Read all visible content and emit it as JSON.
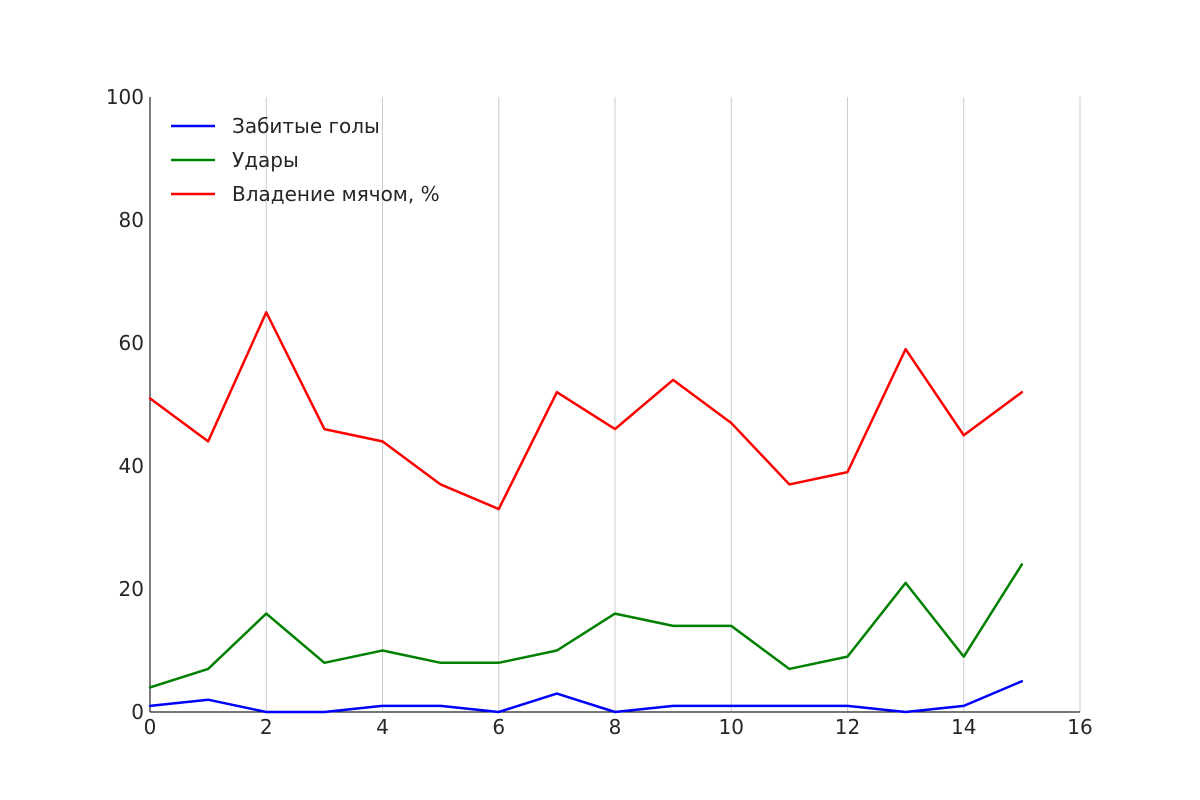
{
  "chart_data": {
    "type": "line",
    "title": "",
    "xlabel": "",
    "ylabel": "",
    "xlim": [
      0,
      16
    ],
    "ylim": [
      0,
      100
    ],
    "x_ticks": [
      0,
      2,
      4,
      6,
      8,
      10,
      12,
      14,
      16
    ],
    "y_ticks": [
      0,
      20,
      40,
      60,
      80,
      100
    ],
    "x_tick_labels": [
      "0",
      "2",
      "4",
      "6",
      "8",
      "10",
      "12",
      "14",
      "16"
    ],
    "y_tick_labels": [
      "0",
      "20",
      "40",
      "60",
      "80",
      "100"
    ],
    "grid": "vertical",
    "legend_position": "top-left",
    "x": [
      0,
      1,
      2,
      3,
      4,
      5,
      6,
      7,
      8,
      9,
      10,
      11,
      12,
      13,
      14,
      15
    ],
    "series": [
      {
        "name": "Забитые голы",
        "color": "#0000ff",
        "values": [
          1,
          2,
          0,
          0,
          1,
          1,
          0,
          3,
          0,
          1,
          1,
          1,
          1,
          0,
          1,
          5
        ]
      },
      {
        "name": "Удары",
        "color": "#008000",
        "values": [
          4,
          7,
          16,
          8,
          10,
          8,
          8,
          10,
          16,
          14,
          14,
          7,
          9,
          21,
          9,
          24
        ]
      },
      {
        "name": "Владение мячом, %",
        "color": "#ff0000",
        "values": [
          51,
          44,
          65,
          46,
          44,
          37,
          33,
          52,
          46,
          54,
          47,
          37,
          39,
          59,
          45,
          52
        ]
      }
    ]
  }
}
